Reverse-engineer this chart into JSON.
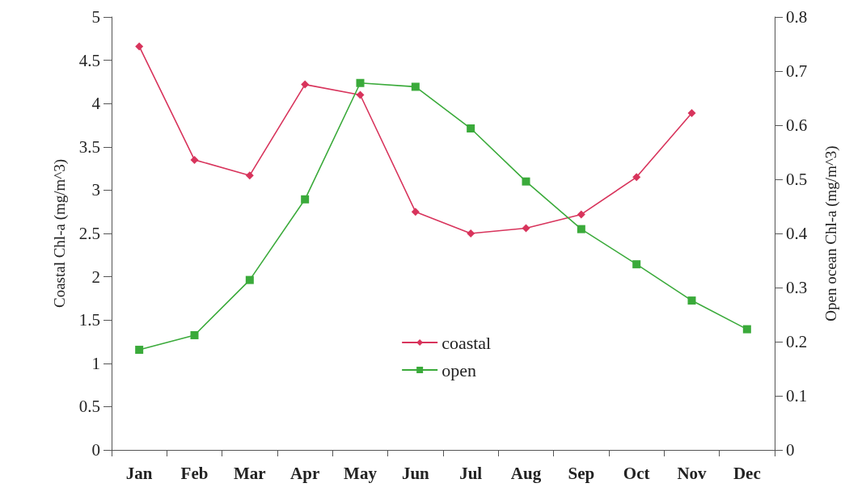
{
  "chart_data": {
    "type": "line",
    "ylabel": "Coastal Chl-a (mg/m^3)",
    "y2label": "Open ocean Chl-a (mg/m^3)",
    "categories": [
      "Jan",
      "Feb",
      "Mar",
      "Apr",
      "May",
      "Jun",
      "Jul",
      "Aug",
      "Sep",
      "Oct",
      "Nov",
      "Dec"
    ],
    "series": [
      {
        "name": "coastal",
        "color": "#d8345c",
        "marker": "diamond",
        "values": [
          4.66,
          3.35,
          3.17,
          4.22,
          4.1,
          2.75,
          2.5,
          2.56,
          2.72,
          3.15,
          3.89,
          null
        ]
      },
      {
        "name": "open",
        "color": "#3aaa3a",
        "marker": "square",
        "axis": "y2",
        "values": [
          0.185,
          0.212,
          0.314,
          0.463,
          0.678,
          0.671,
          0.594,
          0.496,
          0.408,
          0.343,
          0.276,
          0.223
        ]
      }
    ],
    "ylim": [
      0,
      5
    ],
    "yticks": [
      0,
      0.5,
      1,
      1.5,
      2,
      2.5,
      3,
      3.5,
      4,
      4.5,
      5
    ],
    "y2lim": [
      0,
      0.8
    ],
    "y2ticks": [
      0,
      0.1,
      0.2,
      0.3,
      0.4,
      0.5,
      0.6,
      0.7,
      0.8
    ],
    "grid": false,
    "legend": "center",
    "line_style": "solid"
  }
}
